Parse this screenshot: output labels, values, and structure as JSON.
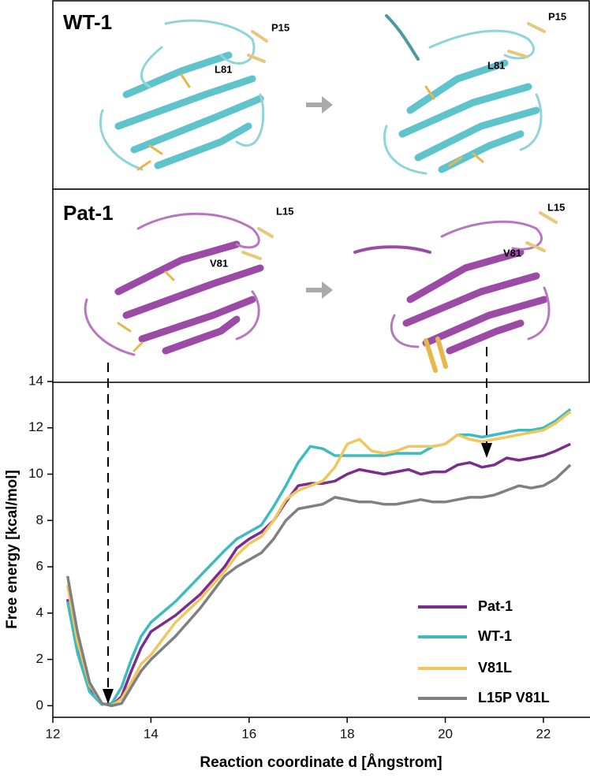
{
  "structures": {
    "wt": {
      "title": "WT-1",
      "before": [
        "P15",
        "L81"
      ],
      "after": [
        "P15",
        "L81"
      ]
    },
    "pat": {
      "title": "Pat-1",
      "before": [
        "L15",
        "V81"
      ],
      "after": [
        "L15",
        "V81"
      ]
    }
  },
  "chart_data": {
    "type": "line",
    "x_label": "Reaction coordinate d [Ångstrom]",
    "y_label": "Free energy [kcal/mol]",
    "x": [
      12.3,
      12.5,
      12.75,
      13,
      13.2,
      13.4,
      13.6,
      13.8,
      14,
      14.5,
      15,
      15.5,
      15.75,
      16,
      16.25,
      16.5,
      16.75,
      17,
      17.25,
      17.5,
      17.75,
      18,
      18.25,
      18.5,
      18.75,
      19,
      19.25,
      19.5,
      19.75,
      20,
      20.25,
      20.5,
      20.75,
      21,
      21.25,
      21.5,
      21.75,
      22,
      22.25,
      22.55
    ],
    "series": [
      {
        "name": "Pat-1",
        "color": "#7b2d8e",
        "values": [
          4.6,
          2.5,
          0.8,
          0.1,
          0,
          0.4,
          1.5,
          2.5,
          3.2,
          3.9,
          4.8,
          6.0,
          6.8,
          7.2,
          7.5,
          8.0,
          8.8,
          9.5,
          9.6,
          9.6,
          9.7,
          10.0,
          10.2,
          10.1,
          10.0,
          10.1,
          10.2,
          10.0,
          10.1,
          10.1,
          10.4,
          10.5,
          10.3,
          10.4,
          10.7,
          10.6,
          10.7,
          10.8,
          11.0,
          11.3
        ]
      },
      {
        "name": "WT-1",
        "color": "#3dbbbf",
        "values": [
          4.5,
          2.3,
          0.6,
          0.05,
          0.1,
          0.8,
          2.0,
          3.0,
          3.6,
          4.5,
          5.6,
          6.7,
          7.2,
          7.5,
          7.8,
          8.6,
          9.5,
          10.5,
          11.2,
          11.1,
          10.8,
          10.8,
          10.8,
          10.8,
          10.8,
          10.9,
          10.9,
          10.9,
          11.2,
          11.3,
          11.7,
          11.7,
          11.6,
          11.7,
          11.8,
          11.9,
          11.9,
          12.0,
          12.3,
          12.8
        ]
      },
      {
        "name": "V81L",
        "color": "#f0c75e",
        "values": [
          5.2,
          2.8,
          0.9,
          0.1,
          0,
          0.3,
          1.0,
          1.8,
          2.2,
          3.6,
          4.6,
          5.8,
          6.5,
          7.0,
          7.3,
          8.0,
          8.9,
          9.3,
          9.5,
          9.7,
          10.3,
          11.3,
          11.5,
          11.0,
          10.9,
          11.0,
          11.2,
          11.2,
          11.2,
          11.3,
          11.7,
          11.5,
          11.4,
          11.5,
          11.6,
          11.7,
          11.8,
          11.9,
          12.2,
          12.7
        ]
      },
      {
        "name": "L15P V81L",
        "color": "#808080",
        "values": [
          5.6,
          3.2,
          1.0,
          0.1,
          0,
          0.1,
          0.8,
          1.5,
          2.0,
          3.0,
          4.2,
          5.6,
          6.0,
          6.3,
          6.6,
          7.2,
          8.0,
          8.5,
          8.6,
          8.7,
          9.0,
          8.9,
          8.8,
          8.8,
          8.7,
          8.7,
          8.8,
          8.9,
          8.8,
          8.8,
          8.9,
          9.0,
          9.0,
          9.1,
          9.3,
          9.5,
          9.4,
          9.5,
          9.8,
          10.4
        ]
      }
    ],
    "xlim": [
      12,
      22.95
    ],
    "xticks": [
      12,
      14,
      16,
      18,
      20,
      22
    ],
    "ylim": [
      -0.5,
      14
    ],
    "yticks": [
      0,
      2,
      4,
      6,
      8,
      10,
      12,
      14
    ],
    "legend": "lower-right"
  }
}
